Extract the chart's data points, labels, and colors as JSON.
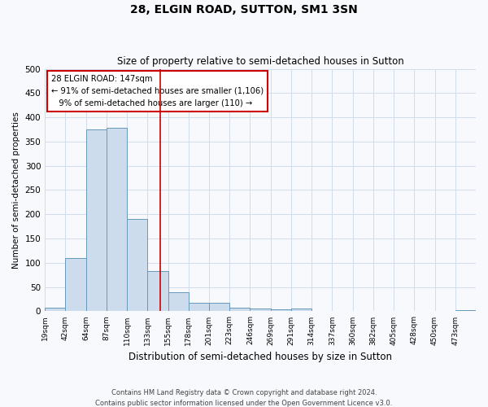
{
  "title": "28, ELGIN ROAD, SUTTON, SM1 3SN",
  "subtitle": "Size of property relative to semi-detached houses in Sutton",
  "xlabel": "Distribution of semi-detached houses by size in Sutton",
  "ylabel": "Number of semi-detached properties",
  "bin_labels": [
    "19sqm",
    "42sqm",
    "64sqm",
    "87sqm",
    "110sqm",
    "133sqm",
    "155sqm",
    "178sqm",
    "201sqm",
    "223sqm",
    "246sqm",
    "269sqm",
    "291sqm",
    "314sqm",
    "337sqm",
    "360sqm",
    "382sqm",
    "405sqm",
    "428sqm",
    "450sqm",
    "473sqm"
  ],
  "bar_heights": [
    8,
    110,
    375,
    378,
    190,
    83,
    40,
    18,
    18,
    7,
    5,
    4,
    5,
    0,
    0,
    0,
    0,
    0,
    0,
    0,
    3
  ],
  "bar_color": "#ccdcec",
  "bar_edge_color": "#6699bb",
  "ylim": [
    0,
    500
  ],
  "yticks": [
    0,
    50,
    100,
    150,
    200,
    250,
    300,
    350,
    400,
    450,
    500
  ],
  "vline_color": "#cc0000",
  "vline_x": 5.636,
  "annotation_text_line1": "28 ELGIN ROAD: 147sqm",
  "annotation_text_line2": "← 91% of semi-detached houses are smaller (1,106)",
  "annotation_text_line3": "   9% of semi-detached houses are larger (110) →",
  "annotation_box_edge": "#cc0000",
  "footer_line1": "Contains HM Land Registry data © Crown copyright and database right 2024.",
  "footer_line2": "Contains public sector information licensed under the Open Government Licence v3.0.",
  "background_color": "#f8f9fc",
  "grid_color": "#d0dded"
}
